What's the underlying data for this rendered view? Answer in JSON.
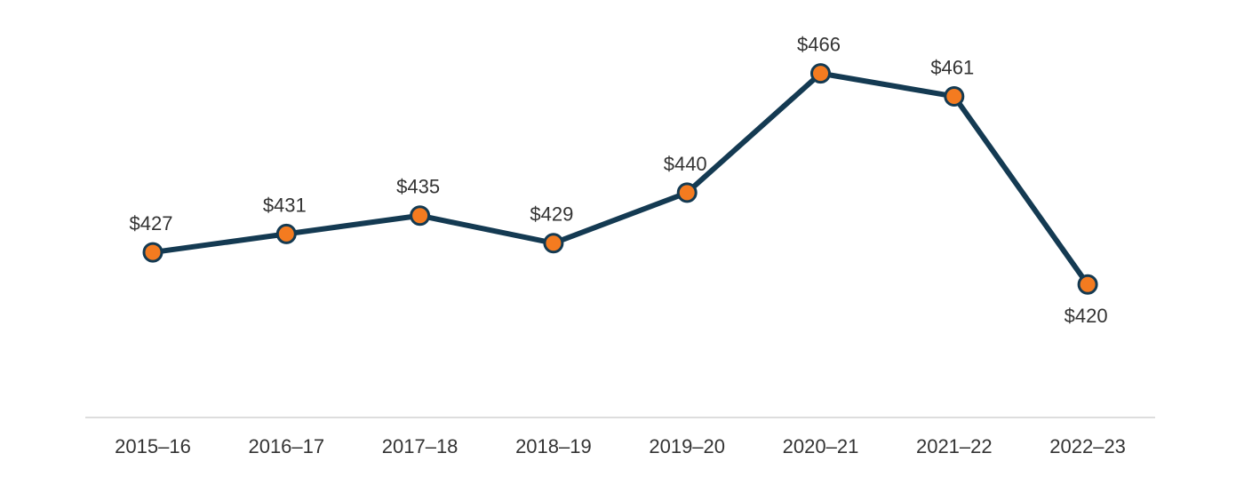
{
  "chart_data": {
    "type": "line",
    "categories": [
      "2015–16",
      "2016–17",
      "2017–18",
      "2018–19",
      "2019–20",
      "2020–21",
      "2021–22",
      "2022–23"
    ],
    "values": [
      427,
      431,
      435,
      429,
      440,
      466,
      461,
      420
    ],
    "labels": [
      "$427",
      "$431",
      "$435",
      "$429",
      "$440",
      "$466",
      "$461",
      "$420"
    ],
    "label_position": [
      "above",
      "above",
      "above",
      "above",
      "above",
      "above",
      "above",
      "below"
    ],
    "title": "",
    "xlabel": "",
    "ylabel": "",
    "ylim": [
      391,
      482
    ],
    "grid": false,
    "colors": {
      "line": "#143a52",
      "marker_fill": "#f47b20",
      "axis": "#dddddd"
    }
  }
}
